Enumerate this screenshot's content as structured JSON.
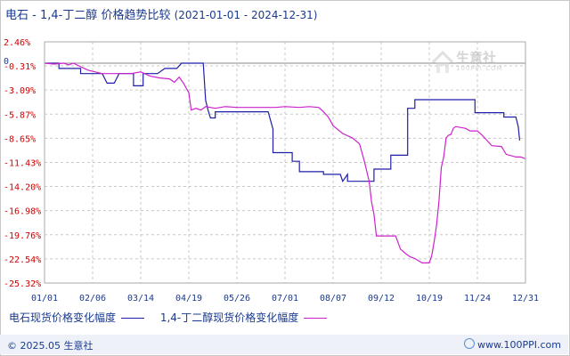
{
  "title": {
    "main": "电石 - 1,4-丁二醇 价格趋势比较",
    "daterange": "(2021-01-01 - 2024-12-31)"
  },
  "watermark": {
    "name": "生意社",
    "url": "100PPI.COM",
    "icon": "house-logo-icon"
  },
  "footer": {
    "copyright": "© 2025.05 生意社",
    "site": "www.100PPI.com",
    "icon": "globe-icon"
  },
  "colors": {
    "series1": "#1f1fa8",
    "series2": "#cc22cc",
    "grid": "#c8c8c8",
    "yaxis_text": "#d00000",
    "text": "#1a3a8f"
  },
  "chart_data": {
    "type": "line",
    "title": "电石 - 1,4-丁二醇 价格趋势比较",
    "xlabel": "",
    "ylabel": "",
    "yticks": [
      "2.46%",
      "-0.31%",
      "-3.09%",
      "-5.87%",
      "-8.65%",
      "-11.43%",
      "-14.20%",
      "-16.98%",
      "-19.76%",
      "-22.54%",
      "-25.32%"
    ],
    "ytick_values": [
      2.46,
      -0.31,
      -3.09,
      -5.87,
      -8.65,
      -11.43,
      -14.2,
      -16.98,
      -19.76,
      -22.54,
      -25.32
    ],
    "zero_label": "0",
    "ylim": [
      -25.32,
      2.46
    ],
    "xticks": [
      "01/01",
      "02/06",
      "03/14",
      "04/19",
      "05/26",
      "07/01",
      "08/07",
      "09/12",
      "10/19",
      "11/24",
      "12/31"
    ],
    "xlim": [
      0,
      10
    ],
    "grid": true,
    "legend_position": "bottom",
    "series": [
      {
        "name": "电石现货价格变化幅度",
        "color": "#1f1fa8",
        "points": [
          [
            0,
            0
          ],
          [
            0.3,
            0
          ],
          [
            0.3,
            -0.6
          ],
          [
            0.75,
            -0.6
          ],
          [
            0.75,
            -1.2
          ],
          [
            1.2,
            -1.2
          ],
          [
            1.3,
            -2.3
          ],
          [
            1.45,
            -2.3
          ],
          [
            1.55,
            -1.2
          ],
          [
            1.85,
            -1.2
          ],
          [
            1.85,
            -2.6
          ],
          [
            2.05,
            -2.6
          ],
          [
            2.05,
            -1.2
          ],
          [
            2.35,
            -1.2
          ],
          [
            2.5,
            -0.6
          ],
          [
            2.75,
            -0.6
          ],
          [
            2.85,
            0
          ],
          [
            3.3,
            0
          ],
          [
            3.35,
            -4.3
          ],
          [
            3.4,
            -5.4
          ],
          [
            3.45,
            -6.3
          ],
          [
            3.55,
            -6.3
          ],
          [
            3.55,
            -5.6
          ],
          [
            4.65,
            -5.6
          ],
          [
            4.75,
            -7.6
          ],
          [
            4.75,
            -10.3
          ],
          [
            5.15,
            -10.3
          ],
          [
            5.15,
            -11.3
          ],
          [
            5.3,
            -11.3
          ],
          [
            5.3,
            -12.5
          ],
          [
            5.8,
            -12.5
          ],
          [
            5.8,
            -12.8
          ],
          [
            6.15,
            -12.8
          ],
          [
            6.2,
            -13.6
          ],
          [
            6.3,
            -12.8
          ],
          [
            6.3,
            -13.6
          ],
          [
            6.85,
            -13.6
          ],
          [
            6.85,
            -12.2
          ],
          [
            7.2,
            -12.2
          ],
          [
            7.2,
            -10.6
          ],
          [
            7.55,
            -10.6
          ],
          [
            7.55,
            -5.2
          ],
          [
            7.7,
            -5.2
          ],
          [
            7.7,
            -4.2
          ],
          [
            8.95,
            -4.2
          ],
          [
            8.95,
            -5.7
          ],
          [
            9.55,
            -5.7
          ],
          [
            9.55,
            -6.2
          ],
          [
            9.8,
            -6.2
          ],
          [
            9.85,
            -7.3
          ],
          [
            9.88,
            -8.9
          ]
        ]
      },
      {
        "name": "1,4-丁二醇现货价格变化幅度",
        "color": "#cc22cc",
        "points": [
          [
            0,
            0
          ],
          [
            0.2,
            -0.1
          ],
          [
            0.4,
            0
          ],
          [
            0.5,
            -0.2
          ],
          [
            0.6,
            0
          ],
          [
            0.9,
            -0.8
          ],
          [
            1.2,
            -1.2
          ],
          [
            1.5,
            -1.2
          ],
          [
            1.8,
            -1.2
          ],
          [
            2.0,
            -1.0
          ],
          [
            2.2,
            -1.5
          ],
          [
            2.4,
            -1.7
          ],
          [
            2.6,
            -1.8
          ],
          [
            2.7,
            -2.2
          ],
          [
            2.8,
            -1.6
          ],
          [
            2.9,
            -2.4
          ],
          [
            3.0,
            -3.4
          ],
          [
            3.05,
            -5.4
          ],
          [
            3.15,
            -5.2
          ],
          [
            3.25,
            -5.4
          ],
          [
            3.35,
            -5.0
          ],
          [
            3.55,
            -5.2
          ],
          [
            3.75,
            -5.0
          ],
          [
            4.0,
            -5.1
          ],
          [
            4.3,
            -5.1
          ],
          [
            4.6,
            -5.1
          ],
          [
            4.8,
            -5.1
          ],
          [
            5.0,
            -5.0
          ],
          [
            5.3,
            -5.1
          ],
          [
            5.5,
            -5.0
          ],
          [
            5.7,
            -5.1
          ],
          [
            5.8,
            -5.6
          ],
          [
            5.9,
            -6.2
          ],
          [
            6.0,
            -7.2
          ],
          [
            6.2,
            -8.1
          ],
          [
            6.4,
            -8.6
          ],
          [
            6.55,
            -9.3
          ],
          [
            6.65,
            -11.3
          ],
          [
            6.75,
            -13.6
          ],
          [
            6.8,
            -16.0
          ],
          [
            6.85,
            -17.4
          ],
          [
            6.9,
            -19.9
          ],
          [
            7.1,
            -19.9
          ],
          [
            7.3,
            -19.9
          ],
          [
            7.4,
            -21.4
          ],
          [
            7.5,
            -21.9
          ],
          [
            7.6,
            -22.3
          ],
          [
            7.7,
            -22.5
          ],
          [
            7.85,
            -23.0
          ],
          [
            8.0,
            -23.0
          ],
          [
            8.05,
            -22.2
          ],
          [
            8.1,
            -20.6
          ],
          [
            8.15,
            -18.7
          ],
          [
            8.2,
            -16.0
          ],
          [
            8.25,
            -12.0
          ],
          [
            8.3,
            -10.8
          ],
          [
            8.35,
            -8.6
          ],
          [
            8.4,
            -8.3
          ],
          [
            8.45,
            -8.2
          ],
          [
            8.5,
            -7.5
          ],
          [
            8.55,
            -7.3
          ],
          [
            8.75,
            -7.5
          ],
          [
            8.85,
            -7.8
          ],
          [
            9.0,
            -7.8
          ],
          [
            9.1,
            -8.3
          ],
          [
            9.3,
            -9.5
          ],
          [
            9.5,
            -9.6
          ],
          [
            9.6,
            -10.5
          ],
          [
            9.8,
            -10.8
          ],
          [
            9.9,
            -10.8
          ],
          [
            10.0,
            -11.0
          ]
        ]
      }
    ]
  }
}
